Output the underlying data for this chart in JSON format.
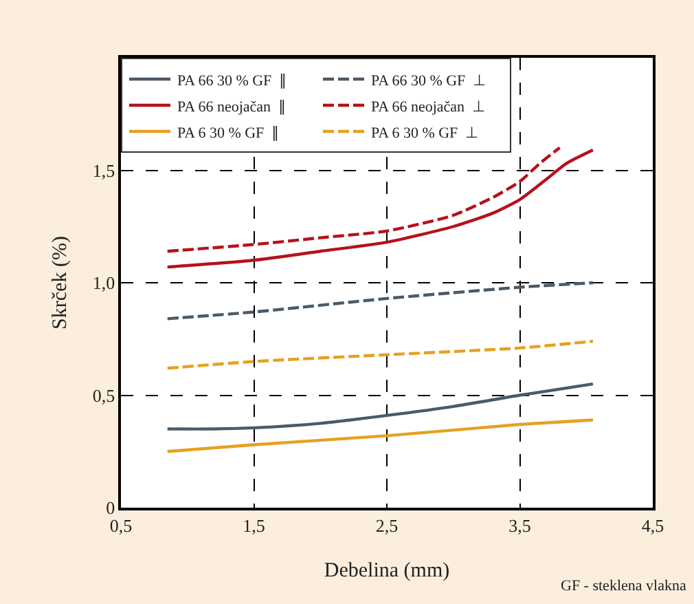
{
  "chart_data": {
    "type": "line",
    "xlabel": "Debelina (mm)",
    "ylabel": "Skrček (%)",
    "xlim": [
      0.5,
      4.5
    ],
    "xticks": [
      {
        "value": 0.5,
        "label": "0,5"
      },
      {
        "value": 1.5,
        "label": "1,5"
      },
      {
        "value": 2.5,
        "label": "2,5"
      },
      {
        "value": 3.5,
        "label": "3,5"
      },
      {
        "value": 4.5,
        "label": "4,5"
      }
    ],
    "ylim": [
      0,
      2.0
    ],
    "yticks": [
      0,
      {
        "value": 0.5,
        "label": "0,5"
      },
      {
        "value": 1.0,
        "label": "1,0"
      },
      {
        "value": 1.5,
        "label": "1,5"
      }
    ],
    "grid": true,
    "legend": "top left",
    "marker": "none",
    "annotations": [
      "GF - steklena vlakna"
    ],
    "series": [
      {
        "name": "PA 66 30 % GF  ∥",
        "color": "#4a5a68",
        "line_style": "solid",
        "x": [
          0.85,
          1.2,
          1.5,
          2.0,
          2.5,
          3.0,
          3.5,
          4.05
        ],
        "values": [
          0.35,
          0.35,
          0.355,
          0.375,
          0.41,
          0.45,
          0.5,
          0.55
        ]
      },
      {
        "name": "PA 66 30 % GF  ⊥",
        "color": "#4a5a68",
        "line_style": "dashed",
        "x": [
          0.85,
          1.5,
          2.5,
          3.5,
          4.05
        ],
        "values": [
          0.84,
          0.87,
          0.93,
          0.98,
          1.0
        ]
      },
      {
        "name": "PA 66 neojačan  ∥",
        "color": "#b5121b",
        "line_style": "solid",
        "x": [
          0.85,
          1.5,
          2.0,
          2.5,
          3.0,
          3.3,
          3.5,
          3.7,
          3.85,
          4.05
        ],
        "values": [
          1.07,
          1.1,
          1.14,
          1.18,
          1.25,
          1.31,
          1.37,
          1.46,
          1.53,
          1.59
        ]
      },
      {
        "name": "PA 66 neojačan  ⊥",
        "color": "#b5121b",
        "line_style": "dashed",
        "x": [
          0.85,
          1.5,
          2.0,
          2.5,
          3.0,
          3.3,
          3.5,
          3.65,
          3.8
        ],
        "values": [
          1.14,
          1.17,
          1.2,
          1.23,
          1.3,
          1.38,
          1.45,
          1.53,
          1.6
        ]
      },
      {
        "name": "PA 6 30 % GF  ∥",
        "color": "#e8a020",
        "line_style": "solid",
        "x": [
          0.85,
          1.5,
          2.5,
          3.5,
          4.05
        ],
        "values": [
          0.25,
          0.28,
          0.32,
          0.37,
          0.39
        ]
      },
      {
        "name": "PA 6 30 % GF  ⊥",
        "color": "#e8a020",
        "line_style": "dashed",
        "x": [
          0.85,
          1.5,
          2.5,
          3.5,
          4.05
        ],
        "values": [
          0.62,
          0.65,
          0.68,
          0.71,
          0.74
        ]
      }
    ]
  }
}
